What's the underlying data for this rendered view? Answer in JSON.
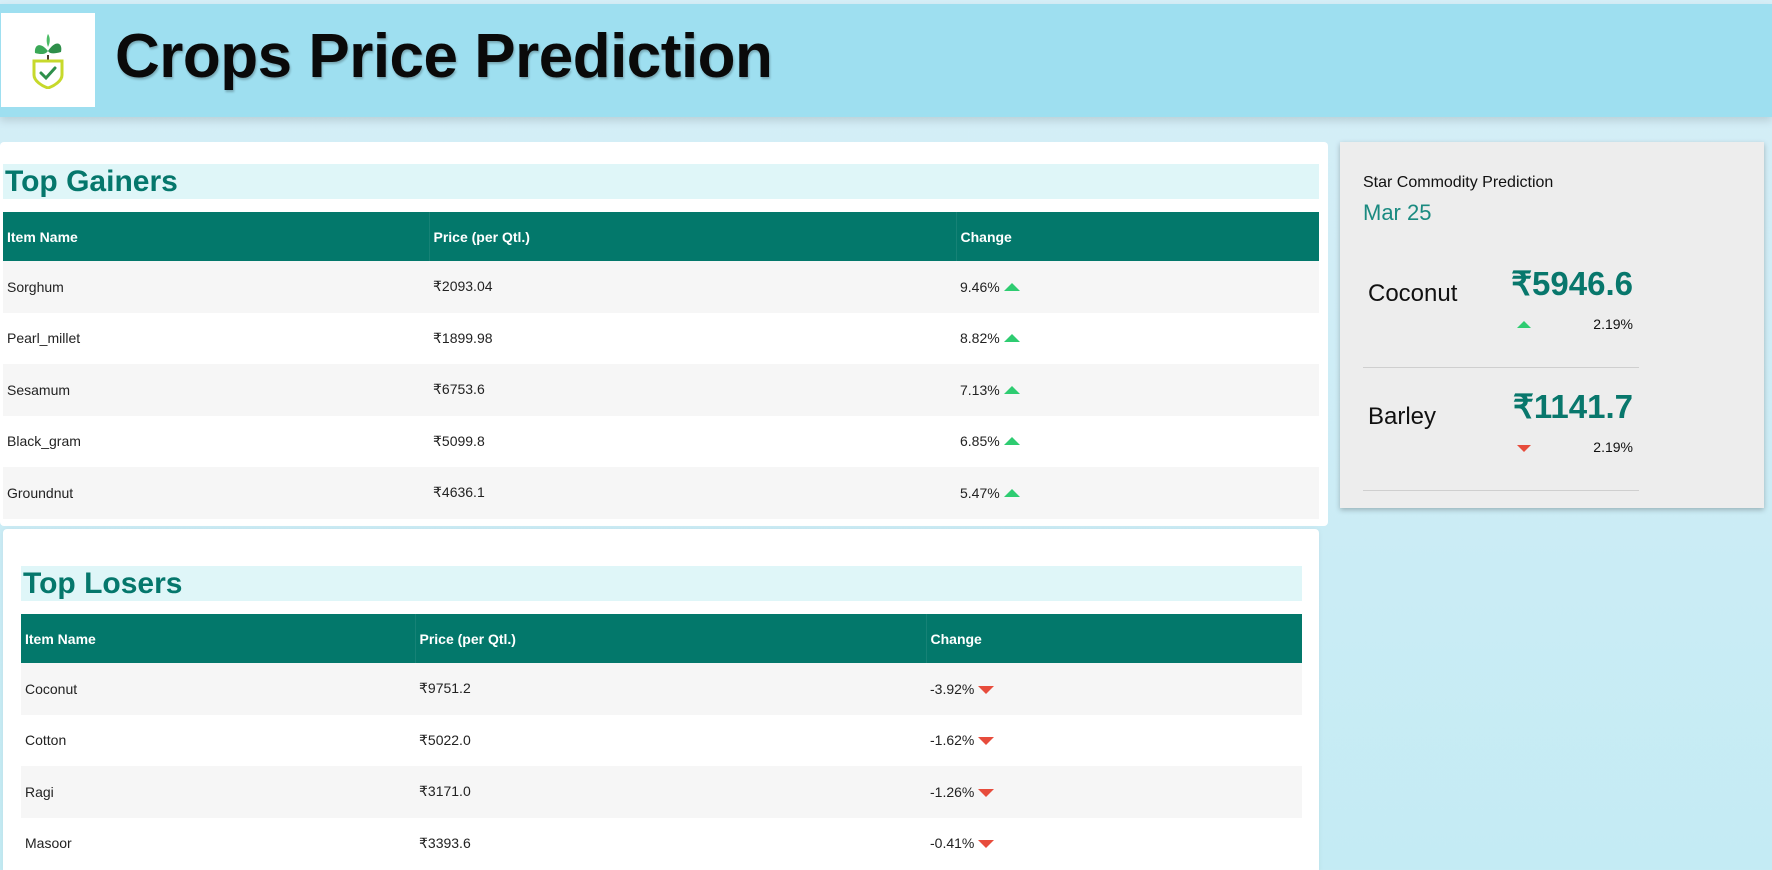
{
  "header": {
    "title": "Crops Price Prediction",
    "logo_icon": "plant-shield-icon"
  },
  "gainers": {
    "title": "Top Gainers",
    "columns": [
      "Item Name",
      "Price (per Qtl.)",
      "Change"
    ],
    "rows": [
      {
        "name": "Sorghum",
        "price": "₹2093.04",
        "change": "9.46%"
      },
      {
        "name": "Pearl_millet",
        "price": "₹1899.98",
        "change": "8.82%"
      },
      {
        "name": "Sesamum",
        "price": "₹6753.6",
        "change": "7.13%"
      },
      {
        "name": "Black_gram",
        "price": "₹5099.8",
        "change": "6.85%"
      },
      {
        "name": "Groundnut",
        "price": "₹4636.1",
        "change": "5.47%"
      }
    ]
  },
  "losers": {
    "title": "Top Losers",
    "columns": [
      "Item Name",
      "Price (per Qtl.)",
      "Change"
    ],
    "rows": [
      {
        "name": "Coconut",
        "price": "₹9751.2",
        "change": "-3.92%"
      },
      {
        "name": "Cotton",
        "price": "₹5022.0",
        "change": "-1.62%"
      },
      {
        "name": "Ragi",
        "price": "₹3171.0",
        "change": "-1.26%"
      },
      {
        "name": "Masoor",
        "price": "₹3393.6",
        "change": "-0.41%"
      }
    ]
  },
  "star": {
    "label": "Star Commodity Prediction",
    "date": "Mar 25",
    "items": [
      {
        "name": "Coconut",
        "price": "₹5946.6",
        "change": "2.19%",
        "direction": "up"
      },
      {
        "name": "Barley",
        "price": "₹1141.7",
        "change": "2.19%",
        "direction": "down"
      }
    ]
  },
  "colors": {
    "header_bg": "#9edff0",
    "table_header": "#03786b",
    "accent_text": "#05776c",
    "gain": "#2ecc71",
    "loss": "#e74c3c"
  }
}
